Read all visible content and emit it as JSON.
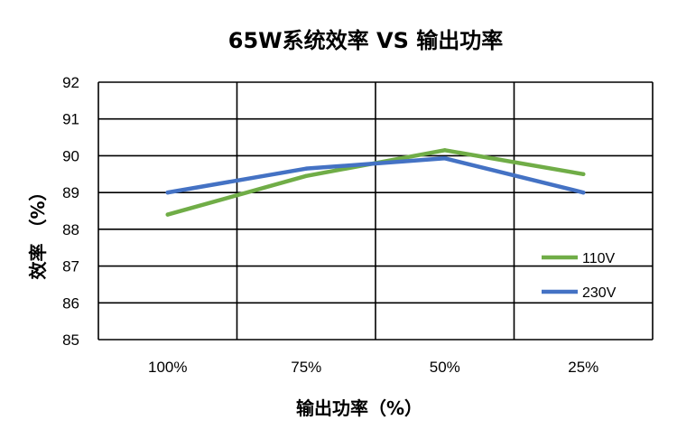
{
  "chart_data": {
    "type": "line",
    "title": "65W系统效率 VS 输出功率",
    "xlabel": "输出功率（%）",
    "ylabel": "效率 （%）",
    "categories": [
      "100%",
      "75%",
      "50%",
      "25%"
    ],
    "ylim": [
      85,
      92
    ],
    "yticks": [
      85,
      86,
      87,
      88,
      89,
      90,
      91,
      92
    ],
    "grid": true,
    "legend_position": "right",
    "series": [
      {
        "name": "110V",
        "color": "#70ad47",
        "values": [
          88.4,
          89.45,
          90.15,
          89.5
        ]
      },
      {
        "name": "230V",
        "color": "#4472c4",
        "values": [
          89.0,
          89.65,
          89.93,
          89.0
        ]
      }
    ]
  }
}
